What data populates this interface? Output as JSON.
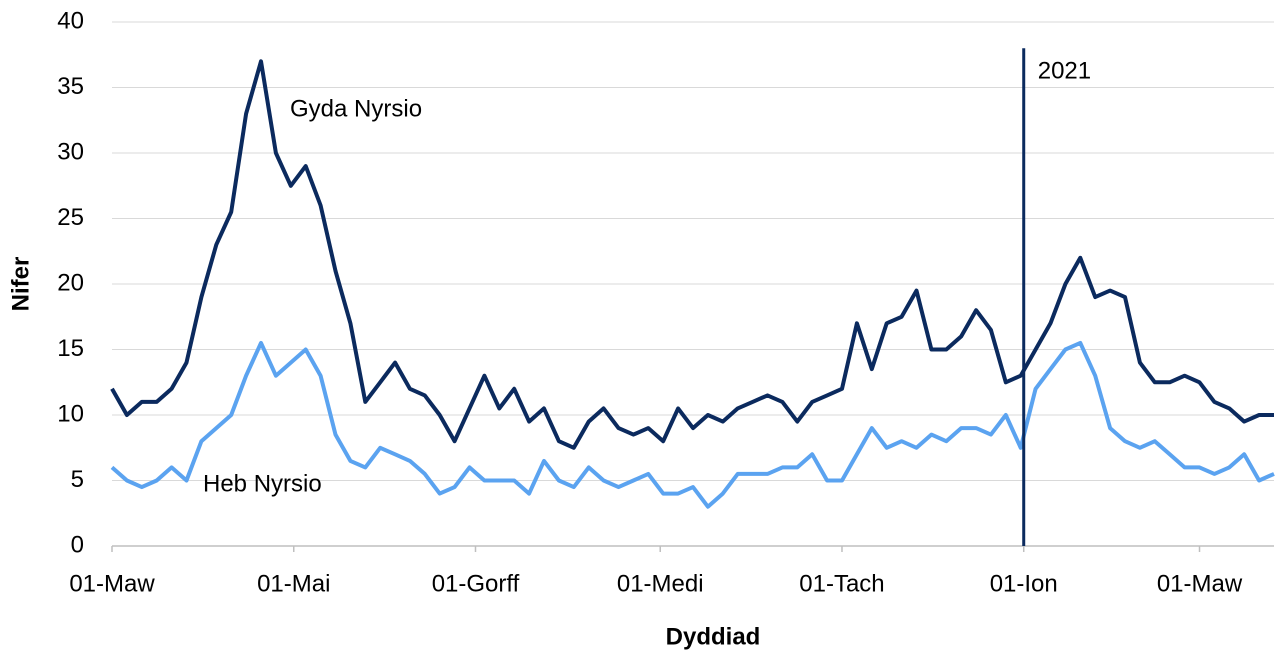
{
  "chart_data": {
    "type": "line",
    "xlabel": "Dyddiad",
    "ylabel": "Nifer",
    "x": [
      0,
      5,
      10,
      15,
      20,
      25,
      30,
      35,
      40,
      45,
      50,
      55,
      60,
      65,
      70,
      75,
      80,
      85,
      90,
      95,
      100,
      105,
      110,
      115,
      120,
      125,
      130,
      135,
      140,
      145,
      150,
      155,
      160,
      165,
      170,
      175,
      180,
      185,
      190,
      195,
      200,
      205,
      210,
      215,
      220,
      225,
      230,
      235,
      240,
      245,
      250,
      255,
      260,
      265,
      270,
      275,
      280,
      285,
      290,
      295,
      300,
      305,
      310,
      315,
      320,
      325,
      330,
      335,
      340,
      345,
      350,
      355,
      360,
      365,
      370,
      375,
      380,
      385,
      390
    ],
    "series": [
      {
        "name": "Gyda Nyrsio",
        "color": "#0b2a5e",
        "values": [
          12,
          10,
          11,
          11,
          12,
          14,
          19,
          23,
          25.5,
          33,
          37,
          30,
          27.5,
          29,
          26,
          21,
          17,
          11,
          12.5,
          14,
          12,
          11.5,
          10,
          8,
          10.5,
          13,
          10.5,
          12,
          9.5,
          10.5,
          8,
          7.5,
          9.5,
          10.5,
          9,
          8.5,
          9,
          8,
          10.5,
          9,
          10,
          9.5,
          10.5,
          11,
          11.5,
          11,
          9.5,
          11,
          11.5,
          12,
          17,
          13.5,
          17,
          17.5,
          19.5,
          15,
          15,
          16,
          18,
          16.5,
          12.5,
          13,
          15,
          17,
          20,
          22,
          19,
          19.5,
          19,
          14,
          12.5,
          12.5,
          13,
          12.5,
          11,
          10.5,
          9.5,
          10,
          10
        ]
      },
      {
        "name": "Heb Nyrsio",
        "color": "#5ba3f0",
        "values": [
          6,
          5,
          4.5,
          5,
          6,
          5,
          8,
          9,
          10,
          13,
          15.5,
          13,
          14,
          15,
          13,
          8.5,
          6.5,
          6,
          7.5,
          7,
          6.5,
          5.5,
          4,
          4.5,
          6,
          5,
          5,
          5,
          4,
          6.5,
          5,
          4.5,
          6,
          5,
          4.5,
          5,
          5.5,
          4,
          4,
          4.5,
          3,
          4,
          5.5,
          5.5,
          5.5,
          6,
          6,
          7,
          5,
          5,
          7,
          9,
          7.5,
          8,
          7.5,
          8.5,
          8,
          9,
          9,
          8.5,
          10,
          7.5,
          12,
          13.5,
          15,
          15.5,
          13,
          9,
          8,
          7.5,
          8,
          7,
          6,
          6,
          5.5,
          6,
          7,
          5,
          5.5
        ]
      }
    ],
    "xlim": [
      0,
      390
    ],
    "xticks": [
      {
        "value": 0,
        "label": "01-Maw"
      },
      {
        "value": 61,
        "label": "01-Mai"
      },
      {
        "value": 122,
        "label": "01-Gorff"
      },
      {
        "value": 184,
        "label": "01-Medi"
      },
      {
        "value": 245,
        "label": "01-Tach"
      },
      {
        "value": 306,
        "label": "01-Ion"
      },
      {
        "value": 365,
        "label": "01-Maw"
      }
    ],
    "ylim": [
      0,
      40
    ],
    "yticks": [
      0,
      5,
      10,
      15,
      20,
      25,
      30,
      35,
      40
    ],
    "grid": true,
    "vline": {
      "x": 306,
      "label": "2021",
      "color": "#0b2a5e"
    }
  }
}
